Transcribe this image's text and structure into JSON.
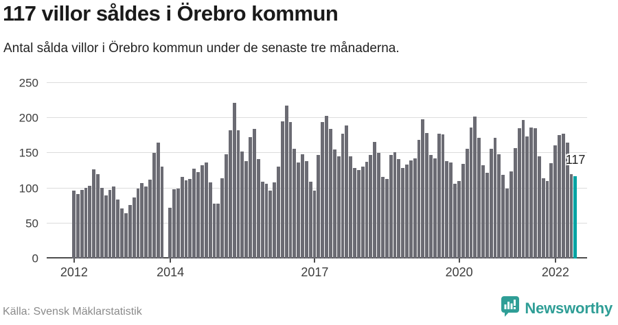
{
  "header": {
    "title": "117 villor såldes i Örebro kommun",
    "subtitle": "Antal sålda villor i Örebro kommun under de senaste tre månaderna."
  },
  "chart_data": {
    "type": "bar",
    "title": "117 villor såldes i Örebro kommun",
    "subtitle": "Antal sålda villor i Örebro kommun under de senaste tre månaderna.",
    "ylim": [
      0,
      250
    ],
    "y_ticks": [
      0,
      50,
      100,
      150,
      200,
      250
    ],
    "grid": true,
    "x_ticks": [
      {
        "label": "2012",
        "index": 0
      },
      {
        "label": "2014",
        "index": 24
      },
      {
        "label": "2017",
        "index": 60
      },
      {
        "label": "2020",
        "index": 96
      },
      {
        "label": "2022",
        "index": 120
      }
    ],
    "values": [
      97,
      92,
      98,
      101,
      104,
      127,
      120,
      101,
      90,
      98,
      103,
      84,
      71,
      64,
      76,
      87,
      100,
      107,
      103,
      112,
      150,
      165,
      131,
      null,
      72,
      99,
      100,
      116,
      111,
      113,
      128,
      123,
      133,
      137,
      108,
      78,
      78,
      114,
      148,
      183,
      222,
      183,
      152,
      139,
      173,
      185,
      142,
      109,
      106,
      97,
      108,
      131,
      195,
      218,
      194,
      156,
      137,
      148,
      139,
      109,
      97,
      147,
      194,
      203,
      185,
      155,
      146,
      178,
      189,
      146,
      129,
      126,
      131,
      138,
      147,
      166,
      150,
      116,
      113,
      147,
      151,
      142,
      129,
      134,
      140,
      143,
      169,
      198,
      179,
      147,
      143,
      178,
      177,
      139,
      137,
      106,
      110,
      135,
      156,
      187,
      202,
      172,
      133,
      122,
      156,
      172,
      148,
      119,
      100,
      124,
      157,
      186,
      197,
      174,
      187,
      186,
      146,
      114,
      110,
      136,
      161,
      176,
      178,
      165,
      120,
      117
    ],
    "highlight_index": 125,
    "annotation": {
      "text": "117",
      "value": 117
    },
    "colors": {
      "bar": "#6b6b73",
      "highlight": "#00a3a3",
      "grid": "#dcdcdc",
      "axis": "#4d4d4d"
    }
  },
  "footer": {
    "source": "Källa: Svensk Mäklarstatistik",
    "brand": "Newsworthy",
    "brand_color": "#2f9e96"
  }
}
